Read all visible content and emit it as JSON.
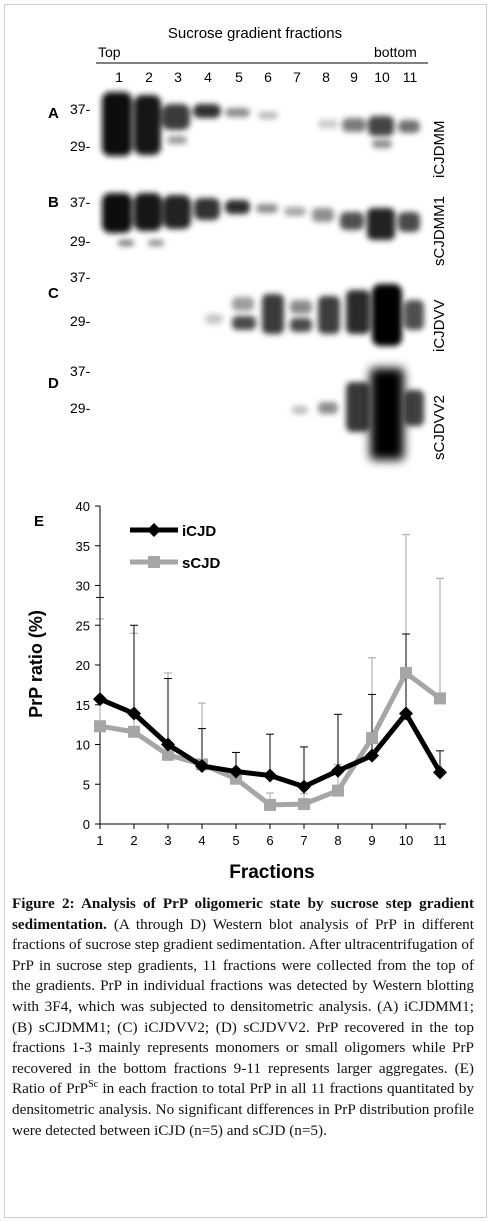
{
  "blots": {
    "header": "Sucrose gradient fractions",
    "top_label": "Top",
    "bottom_label": "bottom",
    "fraction_numbers": [
      "1",
      "2",
      "3",
      "4",
      "5",
      "6",
      "7",
      "8",
      "9",
      "10",
      "11"
    ],
    "panels": [
      {
        "letter": "A",
        "label": "iCJDMM",
        "markers": [
          "37-",
          "29-"
        ]
      },
      {
        "letter": "B",
        "label": "sCJDMM1",
        "markers": [
          "37-",
          "29-"
        ]
      },
      {
        "letter": "C",
        "label": "iCJDVV",
        "markers": [
          "37-",
          "29-"
        ]
      },
      {
        "letter": "D",
        "label": "sCJDVV2",
        "markers": [
          "37-",
          "29-"
        ]
      }
    ]
  },
  "chart_data": {
    "type": "line",
    "panel_letter": "E",
    "xlabel": "Fractions",
    "ylabel": "PrP ratio (%)",
    "x": [
      1,
      2,
      3,
      4,
      5,
      6,
      7,
      8,
      9,
      10,
      11
    ],
    "ylim": [
      0,
      40
    ],
    "yticks": [
      0,
      5,
      10,
      15,
      20,
      25,
      30,
      35,
      40
    ],
    "legend_position": "top-left",
    "series": [
      {
        "name": "iCJD",
        "color": "#000000",
        "marker": "diamond",
        "values": [
          15.7,
          13.9,
          10.0,
          7.3,
          6.6,
          6.1,
          4.7,
          6.7,
          8.6,
          13.9,
          6.5
        ],
        "error_upper": [
          28.5,
          25.0,
          18.3,
          12.0,
          9.0,
          11.3,
          9.7,
          13.8,
          16.3,
          23.9,
          9.2
        ]
      },
      {
        "name": "sCJD",
        "color": "#a6a6a6",
        "marker": "square",
        "values": [
          12.3,
          11.6,
          8.7,
          7.5,
          5.7,
          2.4,
          2.5,
          4.2,
          10.8,
          19.0,
          15.8
        ],
        "error_upper": [
          25.8,
          24.0,
          19.0,
          15.2,
          9.0,
          3.9,
          3.8,
          7.5,
          20.9,
          36.4,
          30.9
        ]
      }
    ]
  },
  "caption": {
    "title": "Figure 2: Analysis of PrP oligomeric state by sucrose step gradient sedimentation.",
    "body_1": " (A through D) Western blot analysis of PrP in different fractions of sucrose step gradient sedimentation. After ultracentrifugation of PrP in sucrose step gradients, 11 fractions were collected from the top of the gradients. PrP in individual fractions was detected by Western blotting with 3F4, which was subjected to densitometric analysis. (A) iCJDMM1; (B) sCJDMM1; (C) iCJDVV2; (D) sCJDVV2. PrP recovered in the top fractions 1-3 mainly represents monomers or small oligomers while PrP recovered in the bottom fractions 9-11 represents larger aggregates. (E) Ratio of PrP",
    "sup": "Sc",
    "body_2": " in each fraction to total PrP in all 11 fractions quantitated by densitometric analysis. No significant differences in PrP distribution profile were detected between iCJD (n=5) and sCJD (n=5)."
  }
}
